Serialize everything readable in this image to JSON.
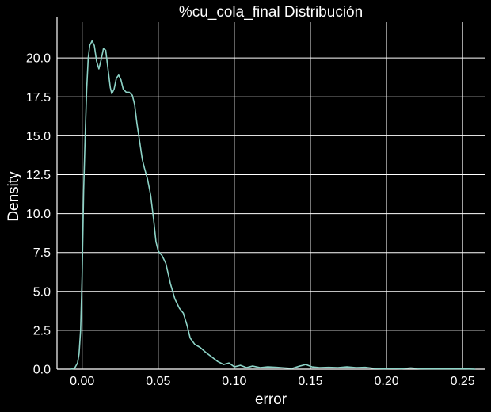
{
  "chart_data": {
    "type": "line",
    "title": "%cu_cola_final Distribución",
    "xlabel": "error",
    "ylabel": "Density",
    "xlim": [
      -0.0165,
      0.2645
    ],
    "ylim": [
      0,
      22.3
    ],
    "xticks": [
      0.0,
      0.05,
      0.1,
      0.15,
      0.2,
      0.25
    ],
    "xtick_labels": [
      "0.00",
      "0.05",
      "0.10",
      "0.15",
      "0.20",
      "0.25"
    ],
    "yticks": [
      0.0,
      2.5,
      5.0,
      7.5,
      10.0,
      12.5,
      15.0,
      17.5,
      20.0
    ],
    "ytick_labels": [
      "0.0",
      "2.5",
      "5.0",
      "7.5",
      "10.0",
      "12.5",
      "15.0",
      "17.5",
      "20.0"
    ],
    "grid": true,
    "background_color": "#000000",
    "grid_color": "#ffffff",
    "text_color": "#ffffff",
    "series": [
      {
        "color": "#8dd3c7",
        "points": [
          [
            -0.0075,
            0.0
          ],
          [
            -0.005,
            0.05
          ],
          [
            -0.003,
            0.4
          ],
          [
            -0.002,
            1.0
          ],
          [
            -0.001,
            2.5
          ],
          [
            0.0,
            6.0
          ],
          [
            0.001,
            11.5
          ],
          [
            0.002,
            15.0
          ],
          [
            0.003,
            18.0
          ],
          [
            0.004,
            20.0
          ],
          [
            0.005,
            20.8
          ],
          [
            0.0065,
            21.1
          ],
          [
            0.008,
            20.8
          ],
          [
            0.0095,
            19.8
          ],
          [
            0.011,
            19.3
          ],
          [
            0.0125,
            19.9
          ],
          [
            0.014,
            20.6
          ],
          [
            0.0155,
            20.5
          ],
          [
            0.017,
            19.3
          ],
          [
            0.0185,
            18.1
          ],
          [
            0.0195,
            17.7
          ],
          [
            0.021,
            18.0
          ],
          [
            0.0225,
            18.7
          ],
          [
            0.024,
            18.9
          ],
          [
            0.0255,
            18.6
          ],
          [
            0.027,
            18.0
          ],
          [
            0.029,
            17.8
          ],
          [
            0.031,
            17.8
          ],
          [
            0.033,
            17.6
          ],
          [
            0.0345,
            17.0
          ],
          [
            0.036,
            15.8
          ],
          [
            0.038,
            14.5
          ],
          [
            0.0395,
            13.5
          ],
          [
            0.041,
            12.9
          ],
          [
            0.043,
            12.2
          ],
          [
            0.045,
            11.2
          ],
          [
            0.047,
            9.6
          ],
          [
            0.0485,
            8.2
          ],
          [
            0.05,
            7.6
          ],
          [
            0.0525,
            7.3
          ],
          [
            0.055,
            6.8
          ],
          [
            0.058,
            5.5
          ],
          [
            0.061,
            4.5
          ],
          [
            0.064,
            3.9
          ],
          [
            0.0665,
            3.6
          ],
          [
            0.069,
            2.8
          ],
          [
            0.071,
            2.0
          ],
          [
            0.074,
            1.6
          ],
          [
            0.0775,
            1.4
          ],
          [
            0.081,
            1.1
          ],
          [
            0.085,
            0.8
          ],
          [
            0.089,
            0.5
          ],
          [
            0.093,
            0.3
          ],
          [
            0.0965,
            0.4
          ],
          [
            0.1,
            0.15
          ],
          [
            0.104,
            0.25
          ],
          [
            0.108,
            0.1
          ],
          [
            0.112,
            0.2
          ],
          [
            0.117,
            0.1
          ],
          [
            0.122,
            0.15
          ],
          [
            0.128,
            0.12
          ],
          [
            0.133,
            0.08
          ],
          [
            0.138,
            0.05
          ],
          [
            0.143,
            0.2
          ],
          [
            0.147,
            0.3
          ],
          [
            0.151,
            0.15
          ],
          [
            0.156,
            0.1
          ],
          [
            0.162,
            0.12
          ],
          [
            0.168,
            0.1
          ],
          [
            0.174,
            0.15
          ],
          [
            0.18,
            0.1
          ],
          [
            0.186,
            0.12
          ],
          [
            0.192,
            0.05
          ],
          [
            0.198,
            0.03
          ],
          [
            0.205,
            0.05
          ],
          [
            0.21,
            0.03
          ],
          [
            0.216,
            0.08
          ],
          [
            0.222,
            0.03
          ],
          [
            0.23,
            0.02
          ],
          [
            0.238,
            0.03
          ],
          [
            0.246,
            0.02
          ],
          [
            0.252,
            0.02
          ],
          [
            0.258,
            0.0
          ]
        ]
      }
    ]
  }
}
